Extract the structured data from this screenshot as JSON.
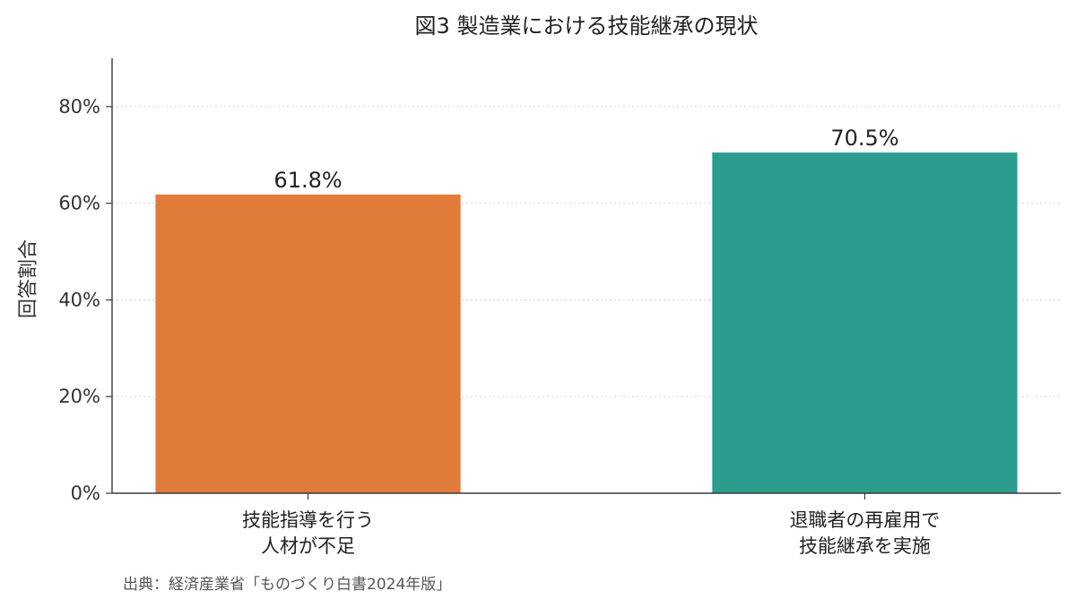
{
  "chart_data": {
    "type": "bar",
    "title": "図3 製造業における技能継承の現状",
    "xlabel": "",
    "ylabel": "回答割合",
    "categories": [
      "技能指導を行う\n人材が不足",
      "退職者の再雇用で\n技能継承を実施"
    ],
    "values": [
      61.8,
      70.5
    ],
    "data_labels": [
      "61.8%",
      "70.5%"
    ],
    "ylim": [
      0,
      90
    ],
    "y_ticks": [
      0,
      20,
      40,
      60,
      80
    ],
    "y_tick_labels": [
      "0%",
      "20%",
      "40%",
      "60%",
      "80%"
    ],
    "colors": [
      "#E07B39",
      "#2A9D8F"
    ],
    "grid": "y-dotted",
    "legend": "none"
  },
  "source": "出典：経済産業省「ものづくり白書2024年版」"
}
